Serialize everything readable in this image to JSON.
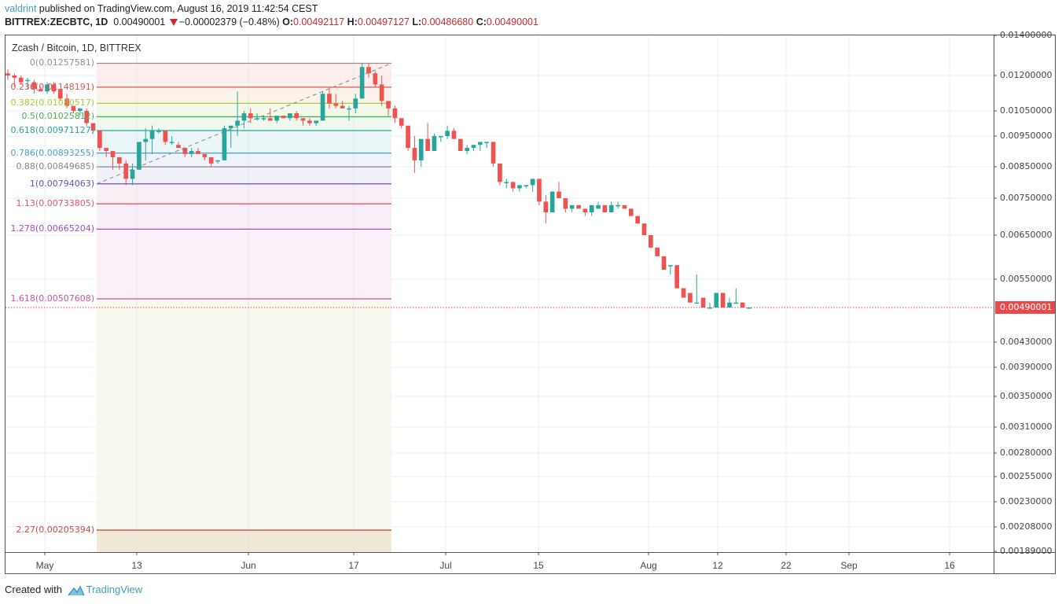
{
  "header": {
    "user": "valdrint",
    "published_text": " published on TradingView.com, August 16, 2019 11:42:54 CEST",
    "symbol": "BITTREX:ZECBTC, 1D",
    "last": "0.00490001",
    "change": "−0.00002379 (−0.48%)",
    "open_label": "O:",
    "open": "0.00492117",
    "high_label": "H:",
    "high": "0.00497127",
    "low_label": "L:",
    "low": "0.00486680",
    "close_label": "C:",
    "close": "0.00490001"
  },
  "legend": {
    "title": "Zcash / Bitcoin, 1D, BITTREX"
  },
  "price_tag": "0.00490001",
  "footer": {
    "created_with": "Created with",
    "brand": "TradingView"
  },
  "colors": {
    "up": "#26a69a",
    "down": "#ef5350",
    "price_line": "#e84a4a",
    "brand": "#3f9fc0"
  },
  "chart_data": {
    "type": "candlestick",
    "title": "Zcash / Bitcoin, 1D, BITTREX",
    "symbol": "BITTREX:ZECBTC",
    "xlabel": "",
    "ylabel": "",
    "y_ticks": [
      "0.01400000",
      "0.01200000",
      "0.01050000",
      "0.00950000",
      "0.00850000",
      "0.00750000",
      "0.00650000",
      "0.00550000",
      "0.00430000",
      "0.00390000",
      "0.00350000",
      "0.00310000",
      "0.00280000",
      "0.00255000",
      "0.00230000",
      "0.00208000",
      "0.00189000"
    ],
    "x_ticks": [
      "May",
      "13",
      "Jun",
      "17",
      "Jul",
      "15",
      "Aug",
      "12",
      "22",
      "Sep",
      "16"
    ],
    "ylim": [
      0.00189,
      0.014
    ],
    "last_price": 0.00490001,
    "fibonacci": [
      {
        "level": "0",
        "value": "0.01257581",
        "color": "#9e8a8a"
      },
      {
        "level": "0.236",
        "value": "0.01148191",
        "color": "#e05555"
      },
      {
        "level": "0.382",
        "value": "0.01080517",
        "color": "#a8cc3a"
      },
      {
        "level": "0.5",
        "value": "0.01025812",
        "color": "#4caf50"
      },
      {
        "level": "0.618",
        "value": "0.00971127",
        "color": "#26a69a"
      },
      {
        "level": "0.786",
        "value": "0.00893255",
        "color": "#4b9fc4"
      },
      {
        "level": "0.88",
        "value": "0.00849685",
        "color": "#888888"
      },
      {
        "level": "1",
        "value": "0.00794063",
        "color": "#5a55c8"
      },
      {
        "level": "1.13",
        "value": "0.00733805",
        "color": "#e05570"
      },
      {
        "level": "1.278",
        "value": "0.00665204",
        "color": "#9c4fc0"
      },
      {
        "level": "1.618",
        "value": "0.00507608",
        "color": "#d052a0"
      },
      {
        "level": "2.27",
        "value": "0.00205394",
        "color": "#d04848"
      }
    ],
    "candles_approx": [
      {
        "o": 0.0121,
        "h": 0.0123,
        "l": 0.0118,
        "c": 0.012
      },
      {
        "o": 0.012,
        "h": 0.0121,
        "l": 0.0115,
        "c": 0.0119
      },
      {
        "o": 0.0119,
        "h": 0.012,
        "l": 0.0116,
        "c": 0.0117
      },
      {
        "o": 0.0118,
        "h": 0.0119,
        "l": 0.0114,
        "c": 0.0118
      },
      {
        "o": 0.0117,
        "h": 0.0118,
        "l": 0.0112,
        "c": 0.0114
      },
      {
        "o": 0.0114,
        "h": 0.0115,
        "l": 0.0113,
        "c": 0.0113
      },
      {
        "o": 0.0113,
        "h": 0.0117,
        "l": 0.0112,
        "c": 0.0116
      },
      {
        "o": 0.0116,
        "h": 0.0117,
        "l": 0.0112,
        "c": 0.0113
      },
      {
        "o": 0.0114,
        "h": 0.0114,
        "l": 0.0109,
        "c": 0.011
      },
      {
        "o": 0.011,
        "h": 0.0112,
        "l": 0.0106,
        "c": 0.0107
      },
      {
        "o": 0.0107,
        "h": 0.0107,
        "l": 0.0104,
        "c": 0.0105
      },
      {
        "o": 0.0105,
        "h": 0.0106,
        "l": 0.0103,
        "c": 0.0106
      },
      {
        "o": 0.0105,
        "h": 0.0106,
        "l": 0.0099,
        "c": 0.01
      },
      {
        "o": 0.01,
        "h": 0.01,
        "l": 0.0096,
        "c": 0.0097
      },
      {
        "o": 0.0097,
        "h": 0.0097,
        "l": 0.009,
        "c": 0.0091
      },
      {
        "o": 0.0091,
        "h": 0.0091,
        "l": 0.0088,
        "c": 0.009
      },
      {
        "o": 0.009,
        "h": 0.009,
        "l": 0.0084,
        "c": 0.0088
      },
      {
        "o": 0.0088,
        "h": 0.0088,
        "l": 0.0084,
        "c": 0.0086
      },
      {
        "o": 0.0086,
        "h": 0.0087,
        "l": 0.0079,
        "c": 0.0081
      },
      {
        "o": 0.0081,
        "h": 0.0086,
        "l": 0.0079,
        "c": 0.0084
      },
      {
        "o": 0.0084,
        "h": 0.0093,
        "l": 0.0084,
        "c": 0.0093
      },
      {
        "o": 0.0093,
        "h": 0.0098,
        "l": 0.0087,
        "c": 0.0094
      },
      {
        "o": 0.0094,
        "h": 0.0099,
        "l": 0.0089,
        "c": 0.0097
      },
      {
        "o": 0.0097,
        "h": 0.0098,
        "l": 0.0096,
        "c": 0.0097
      },
      {
        "o": 0.0097,
        "h": 0.0097,
        "l": 0.0092,
        "c": 0.0093
      },
      {
        "o": 0.0093,
        "h": 0.0095,
        "l": 0.0092,
        "c": 0.0093
      },
      {
        "o": 0.0092,
        "h": 0.0093,
        "l": 0.0091,
        "c": 0.0091
      },
      {
        "o": 0.0091,
        "h": 0.0091,
        "l": 0.0088,
        "c": 0.0089
      },
      {
        "o": 0.0089,
        "h": 0.0091,
        "l": 0.0088,
        "c": 0.009
      },
      {
        "o": 0.009,
        "h": 0.0091,
        "l": 0.0089,
        "c": 0.0089
      },
      {
        "o": 0.0089,
        "h": 0.0089,
        "l": 0.0087,
        "c": 0.0088
      },
      {
        "o": 0.0088,
        "h": 0.0088,
        "l": 0.0085,
        "c": 0.0086
      },
      {
        "o": 0.0087,
        "h": 0.0087,
        "l": 0.0086,
        "c": 0.0087
      },
      {
        "o": 0.0087,
        "h": 0.0099,
        "l": 0.0087,
        "c": 0.0098
      },
      {
        "o": 0.0098,
        "h": 0.0099,
        "l": 0.0091,
        "c": 0.0099
      },
      {
        "o": 0.0099,
        "h": 0.0113,
        "l": 0.0095,
        "c": 0.0101
      },
      {
        "o": 0.0101,
        "h": 0.0105,
        "l": 0.0098,
        "c": 0.0104
      },
      {
        "o": 0.0104,
        "h": 0.0106,
        "l": 0.01,
        "c": 0.0102
      },
      {
        "o": 0.0102,
        "h": 0.0104,
        "l": 0.0101,
        "c": 0.0102
      },
      {
        "o": 0.0102,
        "h": 0.0103,
        "l": 0.0101,
        "c": 0.0102
      },
      {
        "o": 0.0102,
        "h": 0.0106,
        "l": 0.0101,
        "c": 0.0101
      },
      {
        "o": 0.0101,
        "h": 0.0103,
        "l": 0.01,
        "c": 0.0103
      },
      {
        "o": 0.0103,
        "h": 0.0103,
        "l": 0.0102,
        "c": 0.0102
      },
      {
        "o": 0.0102,
        "h": 0.0104,
        "l": 0.0101,
        "c": 0.0104
      },
      {
        "o": 0.0104,
        "h": 0.0105,
        "l": 0.0101,
        "c": 0.0102
      },
      {
        "o": 0.0102,
        "h": 0.0102,
        "l": 0.0099,
        "c": 0.0101
      },
      {
        "o": 0.0101,
        "h": 0.0102,
        "l": 0.0099,
        "c": 0.01
      },
      {
        "o": 0.01,
        "h": 0.0101,
        "l": 0.0099,
        "c": 0.0101
      },
      {
        "o": 0.0101,
        "h": 0.0113,
        "l": 0.0101,
        "c": 0.0112
      },
      {
        "o": 0.0112,
        "h": 0.0115,
        "l": 0.0106,
        "c": 0.0108
      },
      {
        "o": 0.0108,
        "h": 0.0112,
        "l": 0.0106,
        "c": 0.0107
      },
      {
        "o": 0.0107,
        "h": 0.0109,
        "l": 0.0106,
        "c": 0.0106
      },
      {
        "o": 0.0106,
        "h": 0.0107,
        "l": 0.0101,
        "c": 0.0106
      },
      {
        "o": 0.0106,
        "h": 0.0112,
        "l": 0.0104,
        "c": 0.011
      },
      {
        "o": 0.011,
        "h": 0.0126,
        "l": 0.011,
        "c": 0.0124
      },
      {
        "o": 0.0124,
        "h": 0.0126,
        "l": 0.0119,
        "c": 0.0121
      },
      {
        "o": 0.0121,
        "h": 0.0122,
        "l": 0.0115,
        "c": 0.0116
      },
      {
        "o": 0.0116,
        "h": 0.012,
        "l": 0.0107,
        "c": 0.0109
      },
      {
        "o": 0.0109,
        "h": 0.0109,
        "l": 0.0103,
        "c": 0.0106
      },
      {
        "o": 0.0106,
        "h": 0.0107,
        "l": 0.01,
        "c": 0.0102
      },
      {
        "o": 0.0102,
        "h": 0.0102,
        "l": 0.0098,
        "c": 0.0099
      },
      {
        "o": 0.0099,
        "h": 0.0099,
        "l": 0.009,
        "c": 0.0091
      },
      {
        "o": 0.0091,
        "h": 0.0095,
        "l": 0.0083,
        "c": 0.0087
      },
      {
        "o": 0.0087,
        "h": 0.0094,
        "l": 0.0085,
        "c": 0.0094
      },
      {
        "o": 0.0094,
        "h": 0.01,
        "l": 0.0092,
        "c": 0.009
      },
      {
        "o": 0.009,
        "h": 0.0096,
        "l": 0.009,
        "c": 0.0095
      },
      {
        "o": 0.0095,
        "h": 0.0095,
        "l": 0.0093,
        "c": 0.0095
      },
      {
        "o": 0.0095,
        "h": 0.0099,
        "l": 0.0094,
        "c": 0.0097
      },
      {
        "o": 0.0097,
        "h": 0.0098,
        "l": 0.0094,
        "c": 0.0094
      },
      {
        "o": 0.0094,
        "h": 0.0094,
        "l": 0.009,
        "c": 0.009
      },
      {
        "o": 0.009,
        "h": 0.0092,
        "l": 0.0089,
        "c": 0.0091
      },
      {
        "o": 0.0091,
        "h": 0.0092,
        "l": 0.009,
        "c": 0.0092
      },
      {
        "o": 0.0092,
        "h": 0.0093,
        "l": 0.009,
        "c": 0.0093
      },
      {
        "o": 0.0093,
        "h": 0.0093,
        "l": 0.0091,
        "c": 0.0093
      },
      {
        "o": 0.0093,
        "h": 0.0093,
        "l": 0.0085,
        "c": 0.0086
      },
      {
        "o": 0.0086,
        "h": 0.0086,
        "l": 0.0079,
        "c": 0.008
      },
      {
        "o": 0.008,
        "h": 0.0081,
        "l": 0.0078,
        "c": 0.008
      },
      {
        "o": 0.008,
        "h": 0.008,
        "l": 0.0077,
        "c": 0.0078
      },
      {
        "o": 0.0078,
        "h": 0.0079,
        "l": 0.0077,
        "c": 0.0079
      },
      {
        "o": 0.0079,
        "h": 0.0079,
        "l": 0.0078,
        "c": 0.0079
      },
      {
        "o": 0.0079,
        "h": 0.0081,
        "l": 0.0077,
        "c": 0.0081
      },
      {
        "o": 0.0081,
        "h": 0.0081,
        "l": 0.0073,
        "c": 0.0074
      },
      {
        "o": 0.0074,
        "h": 0.0076,
        "l": 0.0068,
        "c": 0.0071
      },
      {
        "o": 0.0071,
        "h": 0.0077,
        "l": 0.0071,
        "c": 0.0077
      },
      {
        "o": 0.0077,
        "h": 0.008,
        "l": 0.0075,
        "c": 0.0075
      },
      {
        "o": 0.0075,
        "h": 0.0075,
        "l": 0.0071,
        "c": 0.0072
      },
      {
        "o": 0.0072,
        "h": 0.0073,
        "l": 0.0071,
        "c": 0.0073
      },
      {
        "o": 0.0073,
        "h": 0.0073,
        "l": 0.0072,
        "c": 0.0072
      },
      {
        "o": 0.0072,
        "h": 0.0072,
        "l": 0.007,
        "c": 0.0071
      },
      {
        "o": 0.0071,
        "h": 0.0073,
        "l": 0.007,
        "c": 0.0073
      },
      {
        "o": 0.0072,
        "h": 0.0074,
        "l": 0.0072,
        "c": 0.0073
      },
      {
        "o": 0.0073,
        "h": 0.0073,
        "l": 0.0071,
        "c": 0.0071
      },
      {
        "o": 0.0071,
        "h": 0.0074,
        "l": 0.0071,
        "c": 0.0073
      },
      {
        "o": 0.0073,
        "h": 0.0074,
        "l": 0.0072,
        "c": 0.0073
      },
      {
        "o": 0.0073,
        "h": 0.0073,
        "l": 0.0072,
        "c": 0.0072
      },
      {
        "o": 0.0072,
        "h": 0.0072,
        "l": 0.007,
        "c": 0.007
      },
      {
        "o": 0.007,
        "h": 0.007,
        "l": 0.0068,
        "c": 0.0068
      },
      {
        "o": 0.0068,
        "h": 0.0068,
        "l": 0.0065,
        "c": 0.0065
      },
      {
        "o": 0.0065,
        "h": 0.0065,
        "l": 0.0062,
        "c": 0.0062
      },
      {
        "o": 0.0062,
        "h": 0.0062,
        "l": 0.006,
        "c": 0.006
      },
      {
        "o": 0.006,
        "h": 0.006,
        "l": 0.0057,
        "c": 0.0057
      },
      {
        "o": 0.0058,
        "h": 0.0058,
        "l": 0.0056,
        "c": 0.0058
      },
      {
        "o": 0.0058,
        "h": 0.0058,
        "l": 0.0053,
        "c": 0.0053
      },
      {
        "o": 0.0053,
        "h": 0.0053,
        "l": 0.0051,
        "c": 0.0051
      },
      {
        "o": 0.0052,
        "h": 0.0052,
        "l": 0.005,
        "c": 0.005
      },
      {
        "o": 0.005,
        "h": 0.0056,
        "l": 0.005,
        "c": 0.005
      },
      {
        "o": 0.0051,
        "h": 0.0051,
        "l": 0.0049,
        "c": 0.0049
      },
      {
        "o": 0.0049,
        "h": 0.005,
        "l": 0.0049,
        "c": 0.0049
      },
      {
        "o": 0.0049,
        "h": 0.0052,
        "l": 0.0049,
        "c": 0.0052
      },
      {
        "o": 0.0052,
        "h": 0.0052,
        "l": 0.0049,
        "c": 0.0049
      },
      {
        "o": 0.0049,
        "h": 0.0051,
        "l": 0.0049,
        "c": 0.005
      },
      {
        "o": 0.005,
        "h": 0.0053,
        "l": 0.005,
        "c": 0.005
      },
      {
        "o": 0.005,
        "h": 0.005,
        "l": 0.0049,
        "c": 0.0049
      },
      {
        "o": 0.0049,
        "h": 0.0049,
        "l": 0.0049,
        "c": 0.0049
      }
    ]
  }
}
